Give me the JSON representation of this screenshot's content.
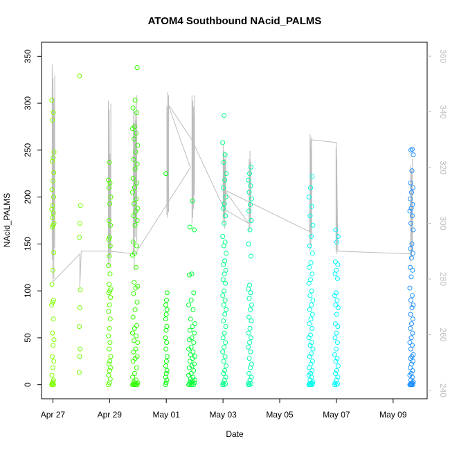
{
  "chart_data": {
    "type": "scatter",
    "title": "ATOM4 Southbound NAcid_PALMS",
    "xlabel": "Date",
    "ylabel": "NAcid_PALMS",
    "x_ticks": [
      "Apr 27",
      "Apr 29",
      "May 01",
      "May 03",
      "May 05",
      "May 07",
      "May 09"
    ],
    "x_tick_days": [
      0,
      2,
      4,
      6,
      8,
      10,
      12
    ],
    "y_ticks": [
      0,
      50,
      100,
      150,
      200,
      250,
      300,
      350
    ],
    "ylim": [
      -15,
      365
    ],
    "xlim_days": [
      -0.4,
      13.2
    ],
    "y2_ticks": [
      240,
      260,
      280,
      300,
      320,
      340,
      360
    ],
    "y2lim": [
      237,
      365
    ],
    "secondary_series_color": "#bdbdbd",
    "color_scale": [
      "#80ff00",
      "#00ff00",
      "#00ffff",
      "#0080ff"
    ],
    "clusters": [
      {
        "day": 0.0,
        "width": 0.08,
        "color": "#7fff00",
        "values": [
          0,
          2,
          5,
          10,
          18,
          25,
          30,
          42,
          48,
          55,
          70,
          85,
          88,
          90,
          107,
          122,
          141,
          168,
          170,
          172,
          178,
          183,
          187,
          191,
          200,
          208,
          217,
          226,
          238,
          242,
          248,
          282,
          290,
          303,
          0,
          0,
          1,
          3
        ]
      },
      {
        "day": 0.95,
        "width": 0.04,
        "color": "#70ff00",
        "values": [
          13,
          30,
          38,
          62,
          82,
          101,
          157,
          172,
          191,
          329
        ]
      },
      {
        "day": 2.0,
        "width": 0.08,
        "color": "#55ff00",
        "values": [
          0,
          2,
          6,
          10,
          15,
          18,
          22,
          25,
          30,
          38,
          45,
          52,
          60,
          70,
          78,
          85,
          93,
          98,
          100,
          102,
          107,
          118,
          127,
          137,
          148,
          155,
          157,
          170,
          175,
          193,
          200,
          210,
          215,
          218,
          237
        ]
      },
      {
        "day": 2.9,
        "width": 0.18,
        "color": "#33ff00",
        "values": [
          0,
          0,
          0,
          0,
          0,
          0,
          1,
          1,
          2,
          3,
          5,
          8,
          12,
          18,
          25,
          28,
          30,
          35,
          38,
          45,
          47,
          52,
          55,
          60,
          63,
          72,
          80,
          88,
          97,
          103,
          105,
          109,
          125,
          138,
          140,
          148,
          152,
          170,
          175,
          180,
          185,
          188,
          193,
          198,
          205,
          210,
          215,
          220,
          230,
          235,
          240,
          248,
          255,
          262,
          268,
          273,
          275,
          290,
          295,
          303,
          338
        ]
      },
      {
        "day": 4.0,
        "width": 0.06,
        "color": "#00ff00",
        "values": [
          0,
          2,
          5,
          8,
          12,
          15,
          20,
          25,
          30,
          38,
          45,
          50,
          58,
          62,
          70,
          75,
          80,
          85,
          90,
          98,
          225
        ]
      },
      {
        "day": 4.9,
        "width": 0.22,
        "color": "#00ff33",
        "values": [
          0,
          0,
          0,
          1,
          1,
          2,
          3,
          4,
          5,
          6,
          8,
          10,
          12,
          15,
          18,
          20,
          22,
          25,
          28,
          30,
          32,
          35,
          38,
          40,
          45,
          48,
          50,
          55,
          58,
          62,
          65,
          70,
          80,
          85,
          90,
          98,
          117,
          118,
          165,
          168,
          196
        ]
      },
      {
        "day": 6.05,
        "width": 0.12,
        "color": "#00ff88",
        "values": [
          0,
          0,
          1,
          2,
          5,
          8,
          12,
          15,
          20,
          25,
          30,
          35,
          40,
          45,
          50,
          55,
          62,
          68,
          75,
          80,
          85,
          90,
          95,
          100,
          108,
          112,
          118,
          122,
          128,
          132,
          140,
          148,
          152,
          158,
          172,
          180,
          188,
          193,
          200,
          210,
          218,
          225,
          237,
          245,
          258,
          287
        ]
      },
      {
        "day": 6.95,
        "width": 0.12,
        "color": "#00ffaa",
        "values": [
          0,
          0,
          1,
          2,
          5,
          8,
          12,
          18,
          22,
          28,
          35,
          40,
          45,
          50,
          55,
          60,
          68,
          72,
          80,
          85,
          92,
          98,
          102,
          106,
          137,
          150,
          165,
          175,
          185,
          192,
          198,
          205,
          212,
          218,
          225,
          232
        ]
      },
      {
        "day": 9.1,
        "width": 0.14,
        "color": "#00ffee",
        "values": [
          0,
          0,
          0,
          0,
          0,
          1,
          1,
          2,
          3,
          5,
          8,
          10,
          12,
          15,
          18,
          22,
          25,
          30,
          33,
          38,
          42,
          45,
          50,
          53,
          60,
          65,
          70,
          75,
          80,
          85,
          90,
          95,
          100,
          108,
          112,
          118,
          125,
          130,
          140,
          148,
          158,
          170,
          180,
          190,
          200,
          210,
          222
        ]
      },
      {
        "day": 10.0,
        "width": 0.12,
        "color": "#00f8ff",
        "values": [
          0,
          0,
          1,
          2,
          5,
          8,
          12,
          15,
          20,
          25,
          28,
          32,
          38,
          45,
          50,
          55,
          62,
          65,
          75,
          82,
          85,
          90,
          95,
          98,
          113,
          118,
          122,
          128,
          131,
          152,
          158,
          165
        ]
      },
      {
        "day": 12.65,
        "width": 0.12,
        "color": "#1e90ff",
        "values": [
          0,
          0,
          0,
          0,
          0,
          1,
          1,
          2,
          3,
          5,
          8,
          10,
          12,
          15,
          18,
          22,
          25,
          28,
          30,
          32,
          38,
          42,
          45,
          50,
          55,
          60,
          65,
          70,
          75,
          82,
          85,
          90,
          95,
          103,
          115,
          122,
          125,
          135,
          140,
          145,
          150,
          165,
          172,
          180,
          185,
          188,
          192,
          198,
          205,
          210,
          215,
          228,
          245,
          250,
          251
        ]
      }
    ],
    "secondary_trace": [
      {
        "day": 0.02,
        "segments": [
          [
            287,
            357
          ],
          [
            288,
            352
          ],
          [
            280,
            345
          ],
          [
            291,
            353
          ]
        ]
      },
      {
        "day": 0.0,
        "links": [
          [
            0.05,
            279
          ],
          [
            1.0,
            289
          ]
        ]
      },
      {
        "day": 2.0,
        "segments": [
          [
            285,
            344
          ],
          [
            288,
            341
          ],
          [
            284,
            325
          ],
          [
            289,
            343
          ]
        ]
      },
      {
        "day": 2.9,
        "segments": [
          [
            290,
            341
          ],
          [
            283,
            336
          ],
          [
            295,
            340
          ],
          [
            300,
            337
          ],
          [
            293,
            346
          ]
        ]
      },
      {
        "day": 4.05,
        "segments": [
          [
            303,
            342
          ],
          [
            302,
            347
          ],
          [
            304,
            346
          ]
        ]
      },
      {
        "day": 4.95,
        "segments": [
          [
            300,
            346
          ],
          [
            302,
            344
          ],
          [
            305,
            342
          ],
          [
            310,
            346
          ]
        ]
      },
      {
        "day": 6.05,
        "segments": [
          [
            300,
            328
          ],
          [
            302,
            326
          ],
          [
            298,
            323
          ],
          [
            304,
            325
          ]
        ]
      },
      {
        "day": 6.95,
        "segments": [
          [
            297,
            323
          ],
          [
            298,
            326
          ],
          [
            300,
            322
          ]
        ]
      },
      {
        "day": 9.1,
        "segments": [
          [
            290,
            332
          ],
          [
            292,
            327
          ],
          [
            295,
            331
          ]
        ]
      },
      {
        "day": 10.0,
        "segments": [
          [
            290,
            327
          ],
          [
            289,
            323
          ]
        ]
      },
      {
        "day": 12.65,
        "segments": [
          [
            286,
            321
          ],
          [
            288,
            319
          ],
          [
            290,
            323
          ]
        ]
      }
    ],
    "secondary_links": [
      [
        0.0,
        288
      ],
      [
        0.0,
        279
      ],
      [
        0.95,
        289
      ],
      [
        0.95,
        277
      ],
      [
        1.0,
        290
      ],
      [
        2.0,
        290
      ],
      [
        2.9,
        289
      ],
      [
        4.85,
        320
      ],
      [
        4.05,
        343
      ],
      [
        4.9,
        330
      ],
      [
        6.05,
        305
      ],
      [
        6.9,
        300
      ],
      [
        6.05,
        312
      ],
      [
        9.05,
        297
      ],
      [
        9.1,
        330
      ],
      [
        10.0,
        329
      ],
      [
        10.05,
        290
      ],
      [
        12.65,
        289
      ]
    ]
  }
}
